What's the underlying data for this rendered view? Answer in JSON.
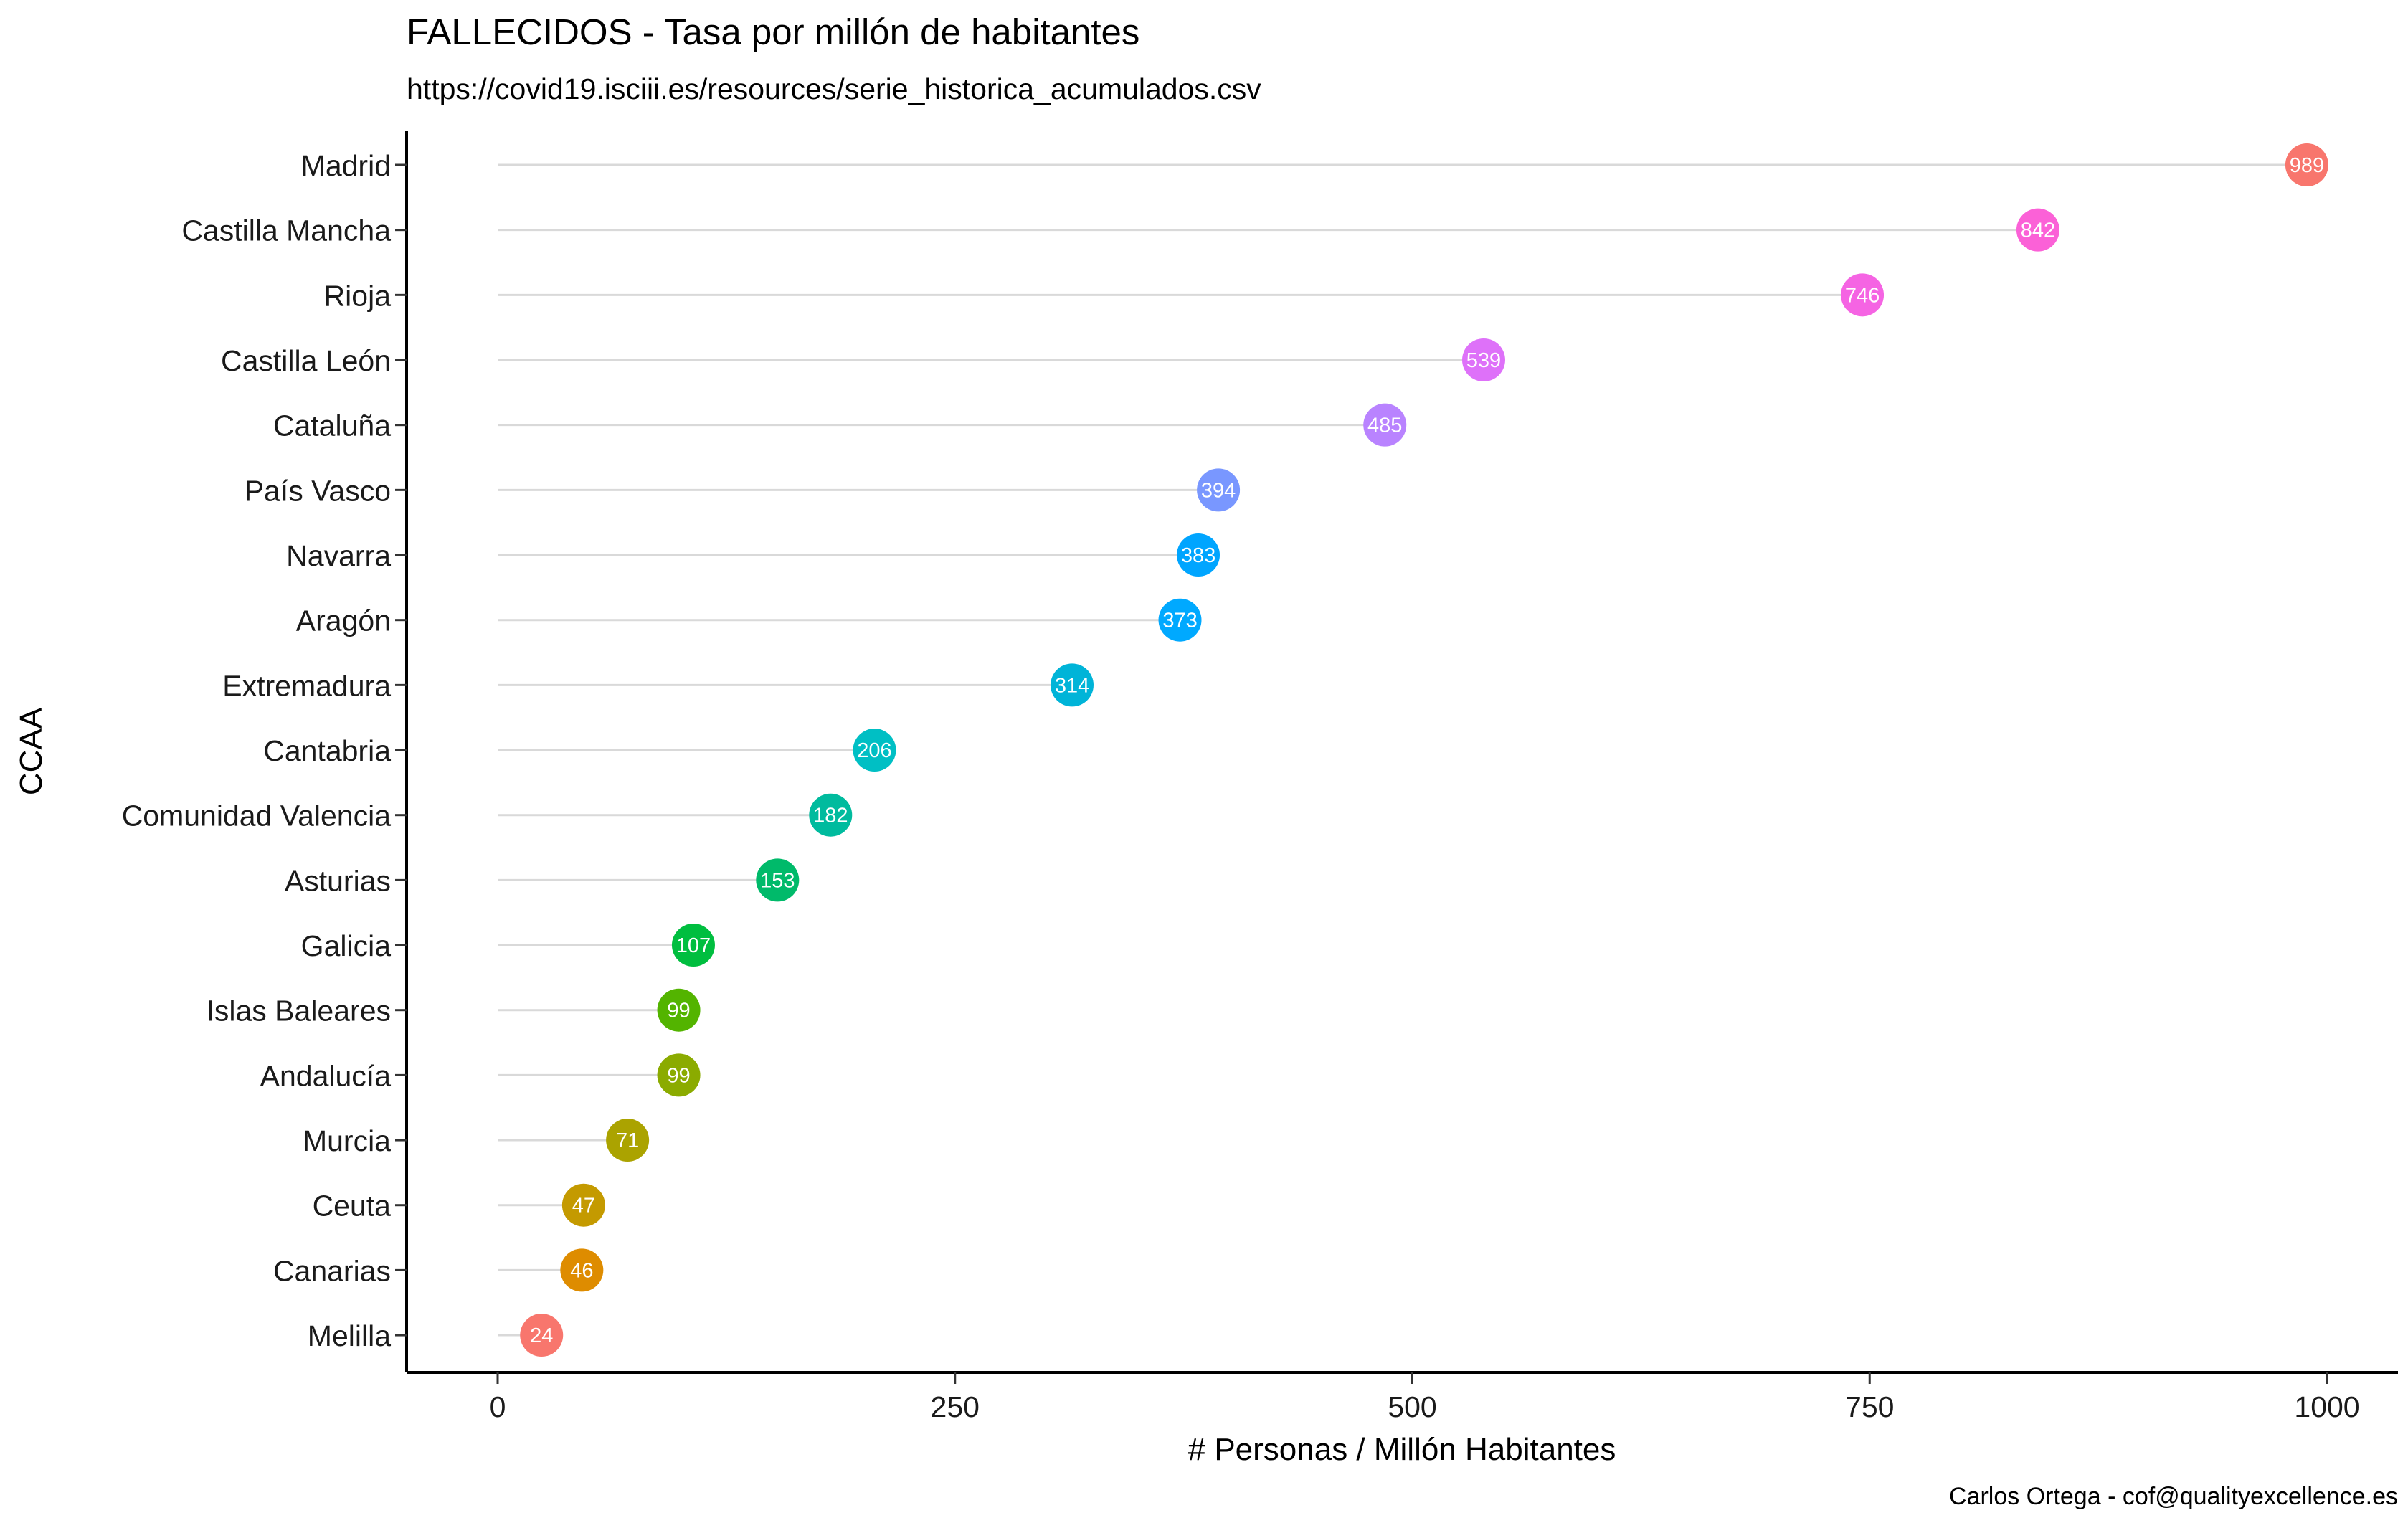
{
  "chart_data": {
    "type": "lollipop",
    "title": "FALLECIDOS - Tasa por millón de habitantes",
    "subtitle": "https://covid19.isciii.es/resources/serie_historica_acumulados.csv",
    "xlabel": "# Personas / Millón Habitantes",
    "ylabel": "CCAA",
    "caption": "Carlos Ortega - cof@qualityexcellence.es",
    "xlim": [
      -50,
      1020
    ],
    "xticks": [
      0,
      250,
      500,
      750,
      1000
    ],
    "grid": false,
    "legend": "none",
    "categories": [
      "Madrid",
      "Castilla Mancha",
      "Rioja",
      "Castilla León",
      "Cataluña",
      "País Vasco",
      "Navarra",
      "Aragón",
      "Extremadura",
      "Cantabria",
      "Comunidad Valencia",
      "Asturias",
      "Galicia",
      "Islas Baleares",
      "Andalucía",
      "Murcia",
      "Ceuta",
      "Canarias",
      "Melilla"
    ],
    "values": [
      989,
      842,
      746,
      539,
      485,
      394,
      383,
      373,
      314,
      206,
      182,
      153,
      107,
      99,
      99,
      71,
      47,
      46,
      24
    ],
    "colors": [
      "#F8766D",
      "#E58700",
      "#C99800",
      "#A3A500",
      "#6BB100",
      "#00BA38",
      "#00BF7D",
      "#00C0AF",
      "#00BCD8",
      "#00B0F6",
      "#619CFF",
      "#B983FF",
      "#E76BF3",
      "#FD61D1",
      "#FF67A4",
      "#F8766D",
      "#E58700",
      "#C99800",
      "#A3A500"
    ],
    "point_colors_top_to_bottom": [
      "#F8766D",
      "#FB61D7",
      "#F564E3",
      "#DE71F9",
      "#B983FF",
      "#7997FF",
      "#00A5FF",
      "#00A9FF",
      "#00B4D8",
      "#00BFC4",
      "#00BB9E",
      "#00BA6A",
      "#00BE3F",
      "#53B400",
      "#8BAB00",
      "#ABA300",
      "#C49A00",
      "#DE8C00",
      "#F8766D"
    ]
  }
}
